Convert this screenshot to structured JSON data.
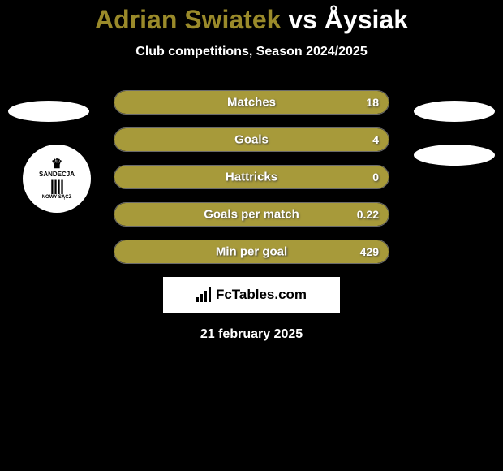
{
  "title": {
    "player1": "Adrian Swiatek",
    "vs": "vs",
    "player2": "Åysiak",
    "player1_color": "#9a8a2a",
    "player2_color": "#ffffff"
  },
  "subtitle": "Club competitions, Season 2024/2025",
  "bar_fill_color": "#a79a3a",
  "bars": [
    {
      "label": "Matches",
      "value": "18",
      "fill_pct": 100
    },
    {
      "label": "Goals",
      "value": "4",
      "fill_pct": 100
    },
    {
      "label": "Hattricks",
      "value": "0",
      "fill_pct": 100
    },
    {
      "label": "Goals per match",
      "value": "0.22",
      "fill_pct": 100
    },
    {
      "label": "Min per goal",
      "value": "429",
      "fill_pct": 100
    }
  ],
  "badge": {
    "top_text": "SANDECJA",
    "bottom_text": "NOWY SĄCZ"
  },
  "logo_text": "FcTables.com",
  "date": "21 february 2025",
  "background_color": "#000000",
  "ellipse_color": "#ffffff"
}
